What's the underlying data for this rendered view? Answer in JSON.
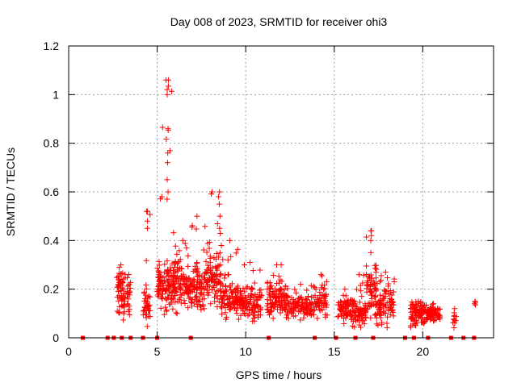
{
  "chart_data": {
    "type": "scatter",
    "title": "Day 008 of 2023, SRMTID for receiver ohi3",
    "xlabel": "GPS time / hours",
    "ylabel": "SRMTID / TECUs",
    "xlim": [
      0,
      24
    ],
    "ylim": [
      0,
      1.2
    ],
    "xticks": [
      0,
      5,
      10,
      15,
      20
    ],
    "yticks": [
      0,
      0.2,
      0.4,
      0.6,
      0.8,
      1.0,
      1.2
    ],
    "xtick_labels": [
      "0",
      "5",
      "10",
      "15",
      "20"
    ],
    "ytick_labels": [
      "0",
      "0.2",
      "0.4",
      "0.6",
      "0.8",
      "1",
      "1.2"
    ],
    "grid": true,
    "marker": "+",
    "marker_color": "#ff0000",
    "clusters": [
      {
        "x_range": [
          2.7,
          3.2
        ],
        "y_center": 0.18,
        "spread": 0.06,
        "count": 60,
        "peak": 0.3
      },
      {
        "x_range": [
          3.3,
          3.5
        ],
        "y_center": 0.18,
        "spread": 0.05,
        "count": 20,
        "peak": 0.26
      },
      {
        "x_range": [
          4.2,
          4.6
        ],
        "y_center": 0.13,
        "spread": 0.05,
        "count": 35,
        "peak": 0.52
      },
      {
        "x_range": [
          5.0,
          6.0
        ],
        "y_center": 0.22,
        "spread": 0.06,
        "count": 120,
        "peak": 1.06
      },
      {
        "x_range": [
          6.0,
          6.9
        ],
        "y_center": 0.22,
        "spread": 0.06,
        "count": 90,
        "peak": 0.4
      },
      {
        "x_range": [
          6.9,
          7.6
        ],
        "y_center": 0.2,
        "spread": 0.06,
        "count": 70,
        "peak": 0.5
      },
      {
        "x_range": [
          7.6,
          8.6
        ],
        "y_center": 0.23,
        "spread": 0.07,
        "count": 100,
        "peak": 0.6
      },
      {
        "x_range": [
          8.6,
          9.6
        ],
        "y_center": 0.16,
        "spread": 0.05,
        "count": 90,
        "peak": 0.4
      },
      {
        "x_range": [
          9.6,
          10.9
        ],
        "y_center": 0.14,
        "spread": 0.04,
        "count": 110,
        "peak": 0.31
      },
      {
        "x_range": [
          11.2,
          12.3
        ],
        "y_center": 0.16,
        "spread": 0.04,
        "count": 100,
        "peak": 0.3
      },
      {
        "x_range": [
          12.3,
          13.9
        ],
        "y_center": 0.13,
        "spread": 0.03,
        "count": 110,
        "peak": 0.22
      },
      {
        "x_range": [
          13.9,
          14.6
        ],
        "y_center": 0.15,
        "spread": 0.04,
        "count": 50,
        "peak": 0.26
      },
      {
        "x_range": [
          15.2,
          16.0
        ],
        "y_center": 0.12,
        "spread": 0.03,
        "count": 60,
        "peak": 0.2
      },
      {
        "x_range": [
          16.0,
          16.8
        ],
        "y_center": 0.11,
        "spread": 0.04,
        "count": 70,
        "peak": 0.26
      },
      {
        "x_range": [
          16.8,
          17.4
        ],
        "y_center": 0.18,
        "spread": 0.07,
        "count": 60,
        "peak": 0.44
      },
      {
        "x_range": [
          17.4,
          18.4
        ],
        "y_center": 0.14,
        "spread": 0.05,
        "count": 80,
        "peak": 0.27
      },
      {
        "x_range": [
          19.3,
          20.2
        ],
        "y_center": 0.1,
        "spread": 0.03,
        "count": 80,
        "peak": 0.15
      },
      {
        "x_range": [
          20.2,
          21.0
        ],
        "y_center": 0.1,
        "spread": 0.02,
        "count": 70,
        "peak": 0.14
      },
      {
        "x_range": [
          21.7,
          21.9
        ],
        "y_center": 0.08,
        "spread": 0.03,
        "count": 10,
        "peak": 0.12
      },
      {
        "x_range": [
          22.9,
          23.0
        ],
        "y_center": 0.14,
        "spread": 0.01,
        "count": 2,
        "peak": 0.15
      }
    ],
    "zero_markers": [
      0.8,
      2.2,
      2.55,
      3.0,
      3.5,
      4.2,
      5.0,
      6.9,
      11.3,
      13.9,
      15.1,
      16.2,
      17.2,
      19.0,
      19.5,
      20.3,
      21.6,
      22.3,
      22.9
    ]
  }
}
